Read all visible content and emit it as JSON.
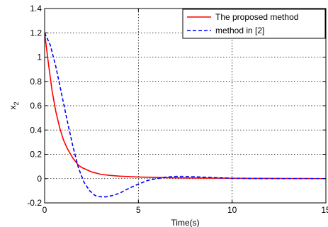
{
  "chart_data": {
    "type": "line",
    "title": "",
    "xlabel": "Time(s)",
    "ylabel": "x",
    "ylabel_subscript": "2",
    "xlim": [
      0,
      15
    ],
    "ylim": [
      -0.2,
      1.4
    ],
    "x_ticks": [
      "0",
      "5",
      "10",
      "15"
    ],
    "y_ticks": [
      "-0.2",
      "0",
      "0.2",
      "0.4",
      "0.6",
      "0.8",
      "1",
      "1.2",
      "1.4"
    ],
    "x_tick_values": [
      0,
      5,
      10,
      15
    ],
    "y_tick_values": [
      -0.2,
      0,
      0.2,
      0.4,
      0.6,
      0.8,
      1,
      1.2,
      1.4
    ],
    "grid": true,
    "legend_position": "top-right",
    "series": [
      {
        "name": "The proposed method",
        "color": "#ff0000",
        "style": "solid",
        "x": [
          0,
          0.2,
          0.4,
          0.6,
          0.8,
          1.0,
          1.2,
          1.5,
          1.8,
          2.0,
          2.5,
          3.0,
          3.5,
          4.0,
          5.0,
          6.0,
          7.0,
          8.0,
          9.0,
          10.0,
          11.0,
          12.0,
          13.0,
          14.0,
          15.0
        ],
        "y": [
          1.2,
          0.95,
          0.72,
          0.55,
          0.42,
          0.32,
          0.25,
          0.17,
          0.11,
          0.09,
          0.055,
          0.035,
          0.026,
          0.02,
          0.013,
          0.009,
          0.006,
          0.005,
          0.004,
          0.003,
          0.002,
          0.002,
          0.001,
          0.001,
          0.0
        ]
      },
      {
        "name": "method in  [2]",
        "color": "#0000ff",
        "style": "dashed",
        "x": [
          0,
          0.3,
          0.6,
          0.9,
          1.2,
          1.5,
          1.8,
          2.1,
          2.4,
          2.7,
          3.0,
          3.3,
          3.6,
          4.0,
          4.5,
          5.0,
          5.5,
          6.0,
          6.5,
          7.0,
          7.5,
          8.0,
          9.0,
          10.0,
          11.0,
          12.0,
          13.0,
          14.0,
          15.0
        ],
        "y": [
          1.2,
          1.1,
          0.92,
          0.7,
          0.48,
          0.27,
          0.09,
          -0.03,
          -0.1,
          -0.14,
          -0.15,
          -0.15,
          -0.14,
          -0.12,
          -0.08,
          -0.045,
          -0.015,
          0.0,
          0.012,
          0.018,
          0.018,
          0.015,
          0.008,
          0.003,
          0.001,
          0.0,
          0.0,
          0.0,
          0.0
        ]
      }
    ]
  }
}
